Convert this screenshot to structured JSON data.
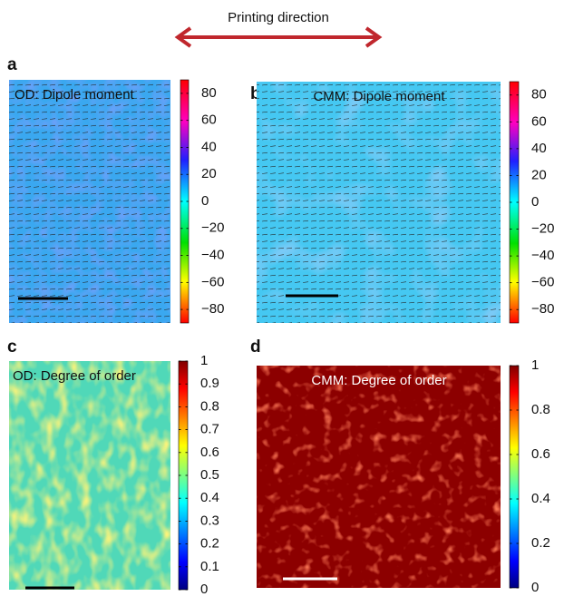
{
  "header": {
    "title": "Printing direction"
  },
  "panels": [
    {
      "label": "a",
      "title": "OD: Dipole moment",
      "colorbar": {
        "lim": [
          -90,
          90
        ],
        "ticks": [
          80,
          60,
          40,
          20,
          0,
          {
            "value": -20,
            "label": "−20"
          },
          {
            "value": -40,
            "label": "−40"
          },
          {
            "value": -60,
            "label": "−60"
          },
          {
            "value": -80,
            "label": "−80"
          }
        ]
      }
    },
    {
      "label": "b",
      "title": "CMM: Dipole moment",
      "colorbar": {
        "lim": [
          -90,
          90
        ],
        "ticks": [
          80,
          60,
          40,
          20,
          0,
          {
            "value": -20,
            "label": "−20"
          },
          {
            "value": -40,
            "label": "−40"
          },
          {
            "value": -60,
            "label": "−60"
          },
          {
            "value": -80,
            "label": "−80"
          }
        ]
      }
    },
    {
      "label": "c",
      "title": "OD: Degree of order",
      "colorbar": {
        "lim": [
          0,
          1
        ],
        "ticks": [
          1,
          0.9,
          0.8,
          0.7,
          0.6,
          0.5,
          0.4,
          0.3,
          0.2,
          0.1,
          0
        ]
      }
    },
    {
      "label": "d",
      "title": "CMM: Degree of order",
      "colorbar": {
        "lim": [
          0,
          1
        ],
        "ticks": [
          1,
          0.8,
          0.6,
          0.4,
          0.2,
          0
        ]
      }
    }
  ]
}
